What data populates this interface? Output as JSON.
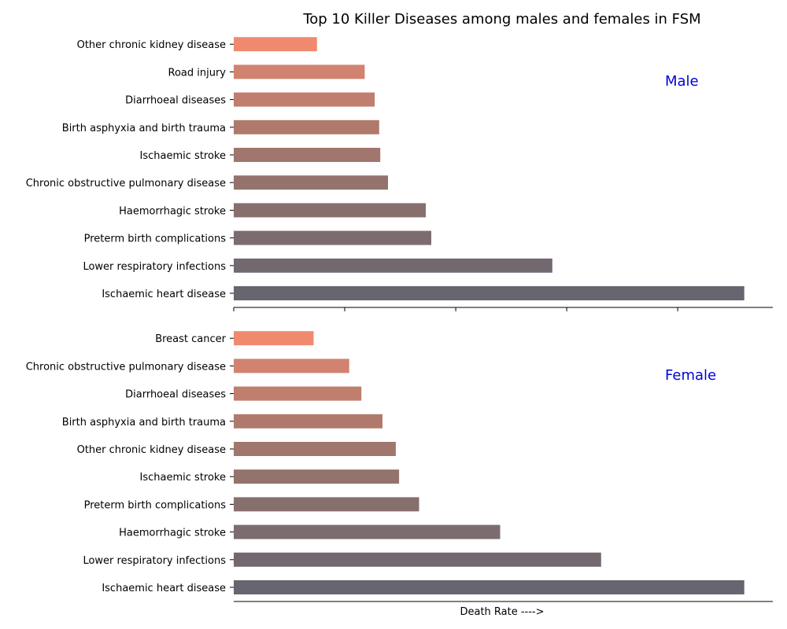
{
  "chart_data": {
    "type": "bar",
    "orientation": "horizontal",
    "title": "Top 10 Killer Diseases among males and females in FSM",
    "xlabel": "Death Rate ---->",
    "xlim": [
      0,
      485
    ],
    "x_ticks": [
      0,
      100,
      200,
      300,
      400
    ],
    "x_tick_labels_visible": false,
    "grid": false,
    "palette": [
      "#676570",
      "#716870",
      "#7c6c6f",
      "#876f6e",
      "#94736c",
      "#a1766c",
      "#af7a6b",
      "#c07e6e",
      "#d1836f",
      "#f08a6f"
    ],
    "panels": [
      {
        "label": "Male",
        "label_color": "#0000dd",
        "categories": [
          "Ischaemic heart disease",
          "Lower respiratory infections",
          "Preterm birth complications",
          "Haemorrhagic stroke",
          "Chronic obstructive pulmonary disease",
          "Ischaemic stroke",
          "Birth asphyxia and birth trauma",
          "Diarrhoeal diseases",
          "Road injury",
          "Other chronic kidney disease"
        ],
        "values": [
          460,
          287,
          178,
          173,
          139,
          132,
          131,
          127,
          118,
          75
        ]
      },
      {
        "label": "Female",
        "label_color": "#0000dd",
        "categories": [
          "Ischaemic heart disease",
          "Lower respiratory infections",
          "Haemorrhagic stroke",
          "Preterm birth complications",
          "Ischaemic stroke",
          "Other chronic kidney disease",
          "Birth asphyxia and birth trauma",
          "Diarrhoeal diseases",
          "Chronic obstructive pulmonary disease",
          "Breast cancer"
        ],
        "values": [
          460,
          331,
          240,
          167,
          149,
          146,
          134,
          115,
          104,
          72
        ]
      }
    ]
  }
}
